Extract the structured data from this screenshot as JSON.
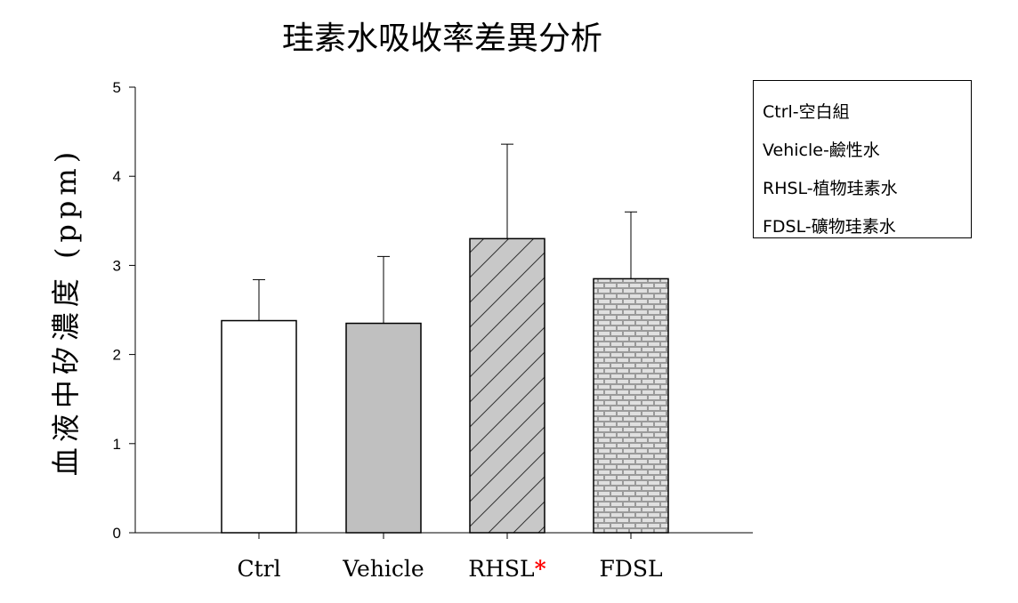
{
  "chart_data": {
    "type": "bar",
    "title": "珪素水吸收率差異分析",
    "xlabel": "",
    "ylabel": "血液中矽濃度 (ppm)",
    "ylim": [
      0,
      5
    ],
    "yticks": [
      "0",
      "1",
      "2",
      "3",
      "4",
      "5"
    ],
    "categories": [
      "Ctrl",
      "Vehicle",
      "RHSL",
      "FDSL"
    ],
    "values": [
      2.38,
      2.35,
      3.3,
      2.85
    ],
    "error_upper": [
      2.84,
      3.1,
      4.36,
      3.6
    ],
    "significance_marker": "*",
    "significance_index": 2,
    "bar_styles": [
      {
        "fill": "#ffffff",
        "pattern": "none"
      },
      {
        "fill": "#c0c0c0",
        "pattern": "none"
      },
      {
        "fill": "#c8c8c8",
        "pattern": "diagonal-hatch"
      },
      {
        "fill": "#a0a0a0",
        "pattern": "brick"
      }
    ],
    "grid": false,
    "legend_position": "top-right",
    "legend": [
      "Ctrl-空白組",
      "Vehicle-鹼性水",
      "RHSL-植物珪素水",
      "FDSL-礦物珪素水"
    ],
    "marker_color": "#ff0000"
  }
}
